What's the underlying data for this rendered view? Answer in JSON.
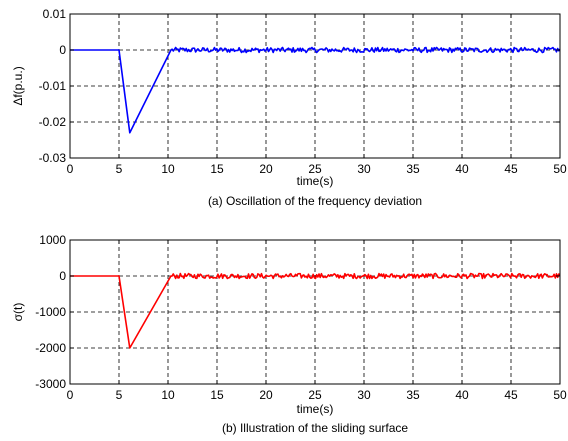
{
  "chart_data": [
    {
      "type": "line",
      "caption": "(a) Oscillation of the frequency deviation",
      "xlabel": "time(s)",
      "ylabel": "Δf(p.u.)",
      "xlim": [
        0,
        50
      ],
      "ylim": [
        -0.03,
        0.01
      ],
      "xticks": [
        0,
        5,
        10,
        15,
        20,
        25,
        30,
        35,
        40,
        45,
        50
      ],
      "yticks": [
        0.01,
        0,
        -0.01,
        -0.02,
        -0.03
      ],
      "ytick_labels": [
        "0.01",
        "0",
        "-0.01",
        "-0.02",
        "-0.03"
      ],
      "grid": true,
      "series": [
        {
          "color": "#0000ff",
          "x": [
            0,
            5,
            6.1,
            10.3,
            50
          ],
          "y": [
            0,
            0,
            -0.023,
            0,
            0
          ],
          "noise_after_x": 10.3,
          "noise_amplitude": 0.0007
        }
      ]
    },
    {
      "type": "line",
      "caption": "(b) Illustration of the sliding surface",
      "xlabel": "time(s)",
      "ylabel": "σ(t)",
      "xlim": [
        0,
        50
      ],
      "ylim": [
        -3000,
        1000
      ],
      "xticks": [
        0,
        5,
        10,
        15,
        20,
        25,
        30,
        35,
        40,
        45,
        50
      ],
      "yticks": [
        1000,
        0,
        -1000,
        -2000,
        -3000
      ],
      "ytick_labels": [
        "1000",
        "0",
        "-1000",
        "-2000",
        "-3000"
      ],
      "grid": true,
      "series": [
        {
          "color": "#ff0000",
          "x": [
            0,
            5,
            6.1,
            10.3,
            50
          ],
          "y": [
            0,
            0,
            -2000,
            0,
            0
          ],
          "noise_after_x": 10.3,
          "noise_amplitude": 70
        }
      ]
    }
  ]
}
